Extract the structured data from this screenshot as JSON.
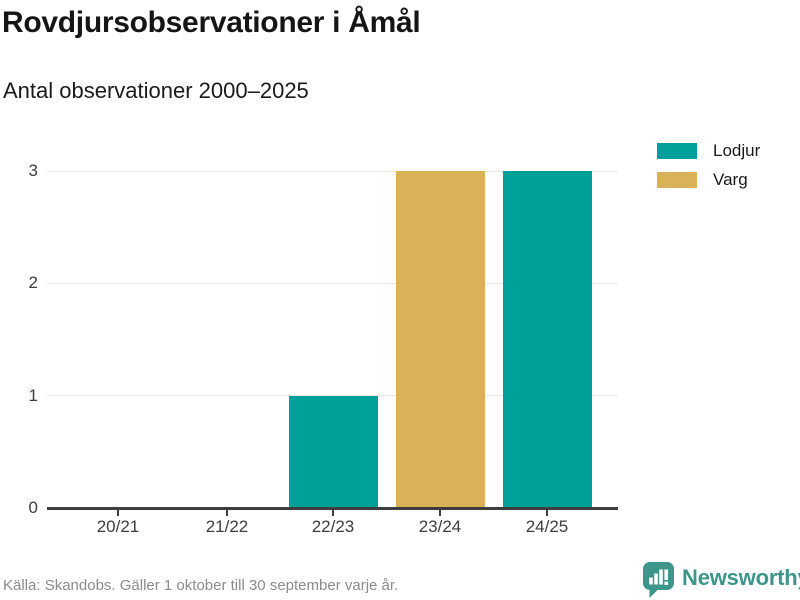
{
  "header": {
    "title": "Rovdjursobservationer i Åmål",
    "subtitle": "Antal observationer 2000–2025"
  },
  "legend": {
    "items": [
      {
        "label": "Lodjur",
        "color": "#00a09a"
      },
      {
        "label": "Varg",
        "color": "#d9b156"
      }
    ]
  },
  "chart_data": {
    "type": "bar",
    "title": "Rovdjursobservationer i Åmål",
    "subtitle": "Antal observationer 2000–2025",
    "categories": [
      "20/21",
      "21/22",
      "22/23",
      "23/24",
      "24/25"
    ],
    "series": [
      {
        "name": "Lodjur",
        "color": "#00a09a",
        "values": [
          0,
          0,
          1,
          0,
          3
        ]
      },
      {
        "name": "Varg",
        "color": "#d9b156",
        "values": [
          0,
          0,
          0,
          3,
          0
        ]
      }
    ],
    "xlabel": "",
    "ylabel": "",
    "ylim": [
      0,
      3
    ],
    "yticks": [
      0,
      1,
      2,
      3
    ],
    "grid": true,
    "legend_position": "top-right"
  },
  "footer": {
    "source": "Källa: Skandobs. Gäller 1 oktober till 30 september varje år.",
    "brand": "Newsworthy",
    "brand_color": "#3e9589"
  },
  "colors": {
    "axis": "#3d3d3d",
    "grid": "#e6e6e6",
    "muted": "#8b8b8b"
  }
}
